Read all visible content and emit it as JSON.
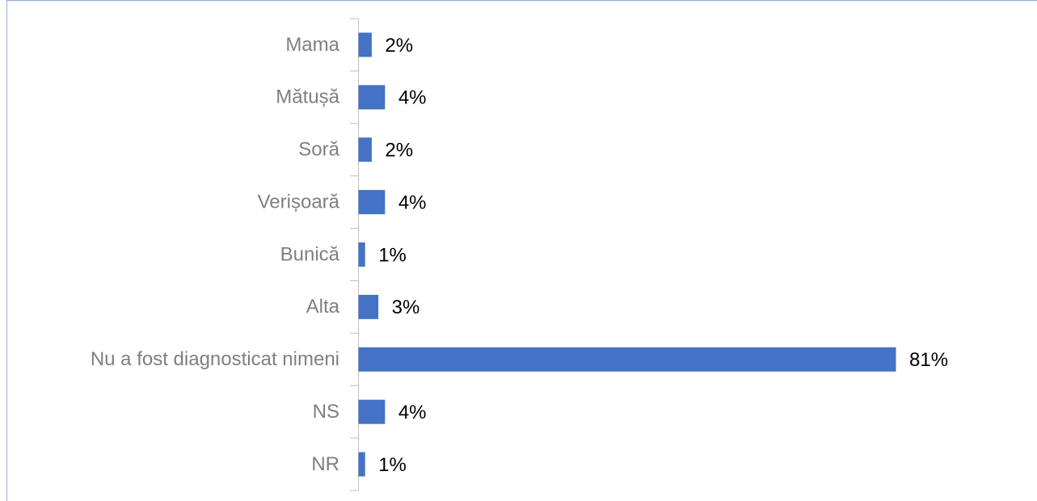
{
  "chart_data": {
    "type": "bar",
    "orientation": "horizontal",
    "categories": [
      "Mama",
      "Mătușă",
      "Soră",
      "Verișoară",
      "Bunică",
      "Alta",
      "Nu a fost diagnosticat nimeni",
      "NS",
      "NR"
    ],
    "values": [
      2,
      4,
      2,
      4,
      1,
      3,
      81,
      4,
      1
    ],
    "value_labels": [
      "2%",
      "4%",
      "2%",
      "4%",
      "1%",
      "3%",
      "81%",
      "4%",
      "1%"
    ],
    "color": "#4472c4"
  }
}
